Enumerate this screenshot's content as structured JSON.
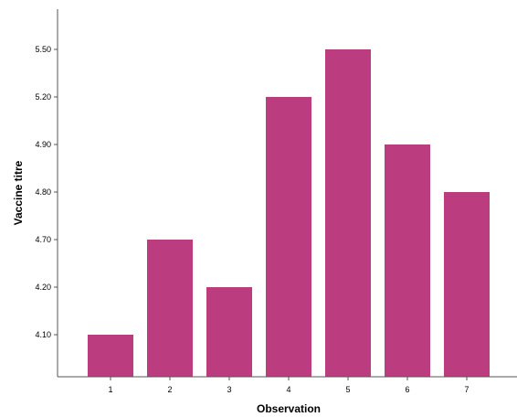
{
  "chart_data": {
    "type": "bar",
    "xlabel": "Observation",
    "ylabel": "Vaccine titre",
    "categories": [
      "1",
      "2",
      "3",
      "4",
      "5",
      "6",
      "7"
    ],
    "values": [
      4.1,
      4.7,
      4.2,
      5.2,
      5.5,
      4.9,
      4.8
    ],
    "y_tick_labels": [
      "4.10",
      "4.20",
      "4.70",
      "4.80",
      "4.90",
      "5.20",
      "5.50"
    ],
    "y_axis_scale": "ordinal (each distinct value occupies an evenly spaced level)",
    "grid": false,
    "legend": "none",
    "colors": {
      "bar": "#bb3d7f",
      "axis": "#555555",
      "background": "#ffffff"
    }
  }
}
